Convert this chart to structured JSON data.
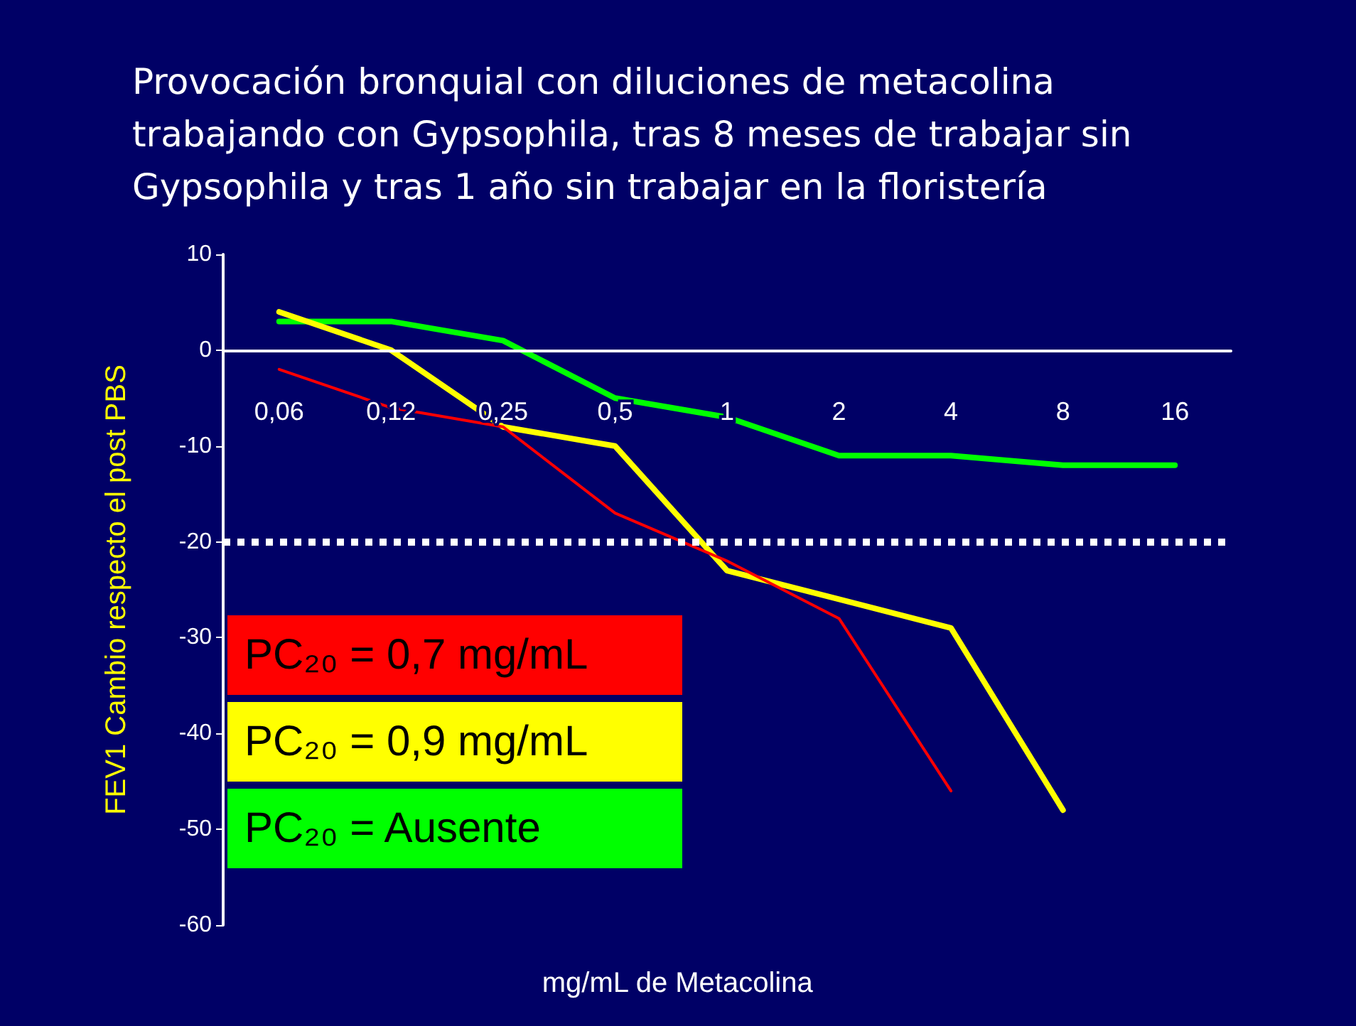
{
  "chart_data": {
    "type": "line",
    "title": "Provocación bronquial con diluciones de metacolina trabajando con Gypsophila, tras 8 meses de trabajar sin Gypsophila y tras 1 año sin trabajar en la floristería",
    "xlabel": "mg/mL de Metacolina",
    "ylabel": "FEV1 Cambio respecto el post PBS",
    "categories": [
      "0,06",
      "0,12",
      "0,25",
      "0,5",
      "1",
      "2",
      "4",
      "8",
      "16"
    ],
    "series": [
      {
        "name": "PC₂₀ = 0,7 mg/mL",
        "color": "#ff0000",
        "values": [
          -2,
          -6,
          -8,
          -17,
          -22,
          -28,
          -46,
          null,
          null
        ]
      },
      {
        "name": "PC₂₀ = 0,9 mg/mL",
        "color": "#ffff00",
        "values": [
          4,
          0,
          -8,
          -10,
          -23,
          -26,
          -29,
          -48,
          null
        ]
      },
      {
        "name": "PC₂₀ = Ausente",
        "color": "#00ff00",
        "values": [
          3,
          3,
          1,
          -5,
          -7,
          -11,
          -11,
          -12,
          -12
        ]
      }
    ],
    "ylim": [
      -60,
      10
    ],
    "yticks": [
      -60,
      -50,
      -40,
      -30,
      -20,
      -10,
      0,
      10
    ],
    "ref_lines": [
      {
        "axis": "y",
        "value": -20,
        "color": "#ffffff",
        "line_style": "dotted"
      }
    ],
    "grid": false,
    "legend": "bottom left",
    "marker": "none",
    "line_style": "solid"
  }
}
